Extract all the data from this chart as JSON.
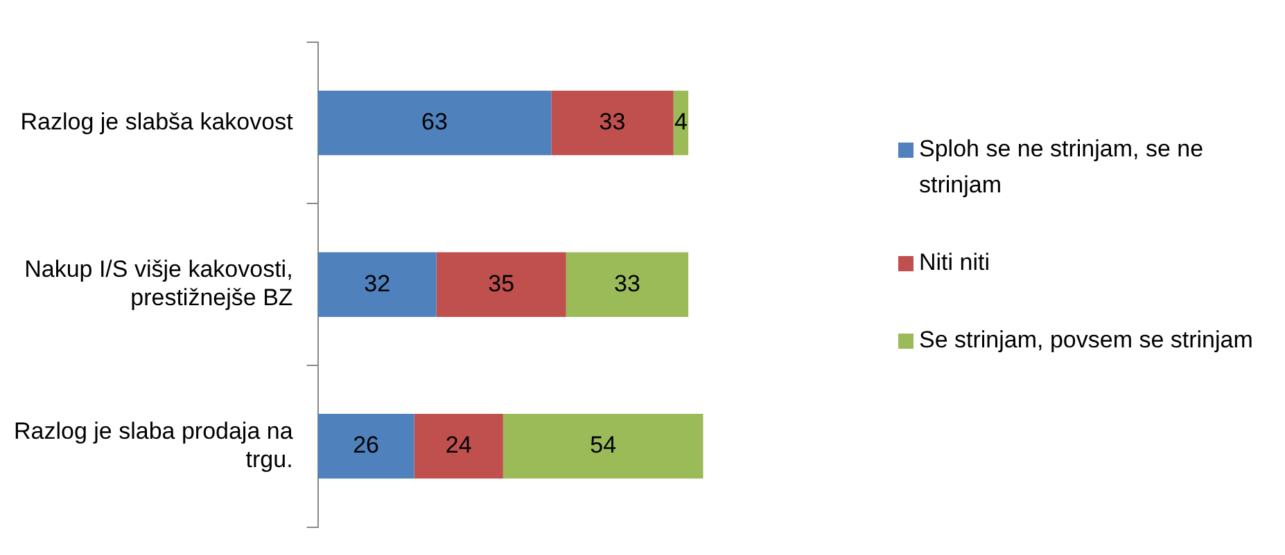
{
  "chart_data": {
    "type": "bar",
    "orientation": "horizontal",
    "stacked": true,
    "data_labels": true,
    "legend": "right",
    "categories": [
      "Razlog je slabša kakovost",
      "Nakup I/S višje kakovosti, prestižnejše BZ",
      "Razlog je slaba prodaja na trgu."
    ],
    "series": [
      {
        "name": "Sploh se ne strinjam, se ne strinjam",
        "color": "#4f81bd",
        "values": [
          63,
          32,
          26
        ]
      },
      {
        "name": "Niti niti",
        "color": "#c0504d",
        "values": [
          33,
          35,
          24
        ]
      },
      {
        "name": "Se strinjam, povsem se strinjam",
        "color": "#9bbb59",
        "values": [
          4,
          33,
          54
        ]
      }
    ]
  }
}
